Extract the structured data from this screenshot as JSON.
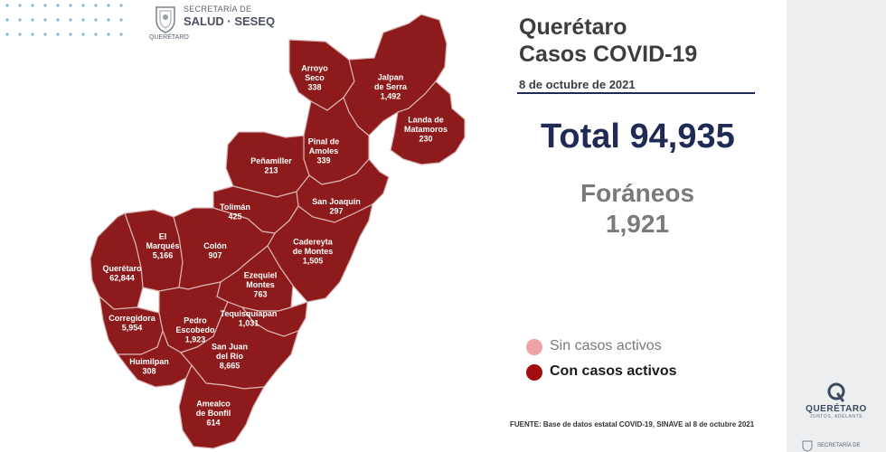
{
  "header": {
    "agency_line1": "SECRETARÍA DE",
    "agency_line2": "SALUD · SESEQ",
    "agency_line3": "QUERÉTARO"
  },
  "title": {
    "state": "Querétaro",
    "subtitle": "Casos COVID-19",
    "date": "8 de octubre de 2021"
  },
  "total": {
    "label": "Total",
    "value": "94,935"
  },
  "foraneos": {
    "label": "Foráneos",
    "value": "1,921"
  },
  "legend": [
    {
      "label": "Sin casos activos",
      "color": "#f2a3a8"
    },
    {
      "label": "Con casos activos",
      "color": "#a40d10"
    }
  ],
  "colors": {
    "active": "#8e1b1b",
    "border": "#d9b3b3",
    "navy": "#1f2a55"
  },
  "municipalities": [
    {
      "name": "Arroyo Seco",
      "lines": [
        "Arroyo",
        "Seco"
      ],
      "cases": "338",
      "active": true
    },
    {
      "name": "Jalpan de Serra",
      "lines": [
        "Jalpan",
        "de Serra"
      ],
      "cases": "1,492",
      "active": true
    },
    {
      "name": "Landa de Matamoros",
      "lines": [
        "Landa de",
        "Matamoros"
      ],
      "cases": "230",
      "active": true
    },
    {
      "name": "Pinal de Amoles",
      "lines": [
        "Pinal de",
        "Amoles"
      ],
      "cases": "339",
      "active": true
    },
    {
      "name": "Peñamiller",
      "lines": [
        "Peñamiller"
      ],
      "cases": "213",
      "active": true
    },
    {
      "name": "San Joaquín",
      "lines": [
        "San Joaquín"
      ],
      "cases": "297",
      "active": true
    },
    {
      "name": "Tolimán",
      "lines": [
        "Tolimán"
      ],
      "cases": "425",
      "active": true
    },
    {
      "name": "Cadereyta de Montes",
      "lines": [
        "Cadereyta",
        "de Montes"
      ],
      "cases": "1,505",
      "active": true
    },
    {
      "name": "El Marqués",
      "lines": [
        "El",
        "Marqués"
      ],
      "cases": "5,166",
      "active": true
    },
    {
      "name": "Colón",
      "lines": [
        "Colón"
      ],
      "cases": "907",
      "active": true
    },
    {
      "name": "Querétaro",
      "lines": [
        "Querétaro"
      ],
      "cases": "62,844",
      "active": true
    },
    {
      "name": "Ezequiel Montes",
      "lines": [
        "Ezequiel",
        "Montes"
      ],
      "cases": "763",
      "active": true
    },
    {
      "name": "Corregidora",
      "lines": [
        "Corregidora"
      ],
      "cases": "5,954",
      "active": true
    },
    {
      "name": "Tequisquiapan",
      "lines": [
        "Tequisquiapan"
      ],
      "cases": "1,031",
      "active": true
    },
    {
      "name": "Pedro Escobedo",
      "lines": [
        "Pedro",
        "Escobedo"
      ],
      "cases": "1,923",
      "active": true
    },
    {
      "name": "Huimilpan",
      "lines": [
        "Huimilpan"
      ],
      "cases": "308",
      "active": true
    },
    {
      "name": "San Juan del Río",
      "lines": [
        "San Juan",
        "del Río"
      ],
      "cases": "8,665",
      "active": true
    },
    {
      "name": "Amealco de Bonfil",
      "lines": [
        "Amealco",
        "de Bonfil"
      ],
      "cases": "614",
      "active": true
    }
  ],
  "source": "FUENTE: Base de datos estatal COVID-19, SINAVE al 8 de octubre 2021",
  "brand": {
    "name": "QUERÉTARO",
    "tagline": "JUNTOS, ADELANTE",
    "bottom_agency": "SECRETARÍA DE"
  }
}
